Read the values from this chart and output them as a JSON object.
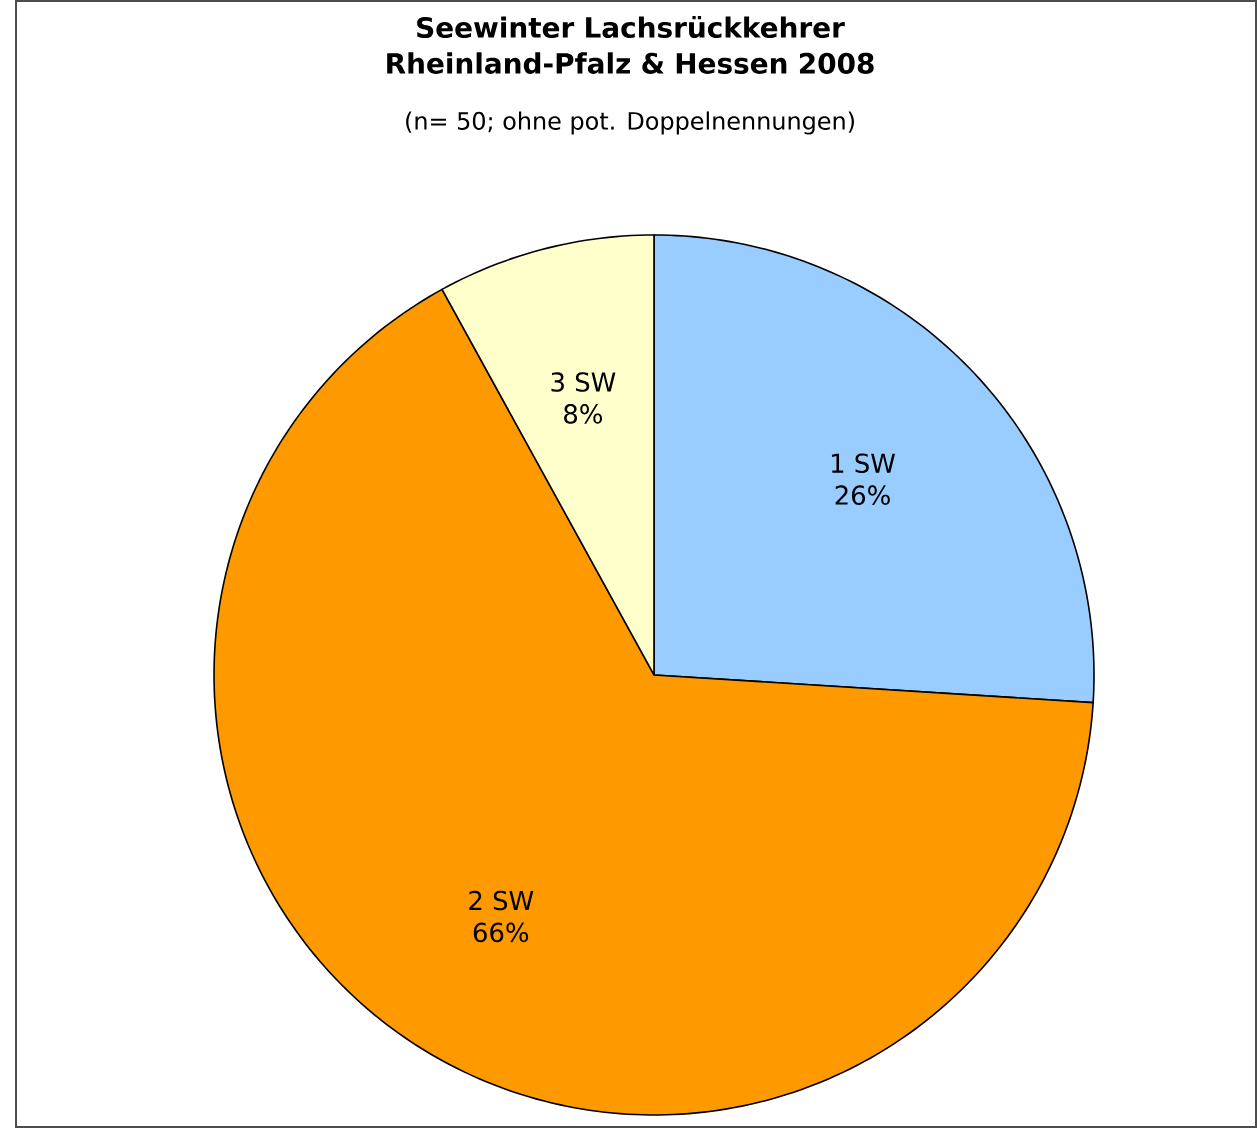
{
  "chart_data": {
    "type": "pie",
    "title": "Seewinter Lachsrückkehrer Rheinland-Pfalz & Hessen 2008",
    "subtitle": "(n= 50; ohne pot. Doppelnennungen)",
    "categories": [
      "1 SW",
      "2 SW",
      "3 SW"
    ],
    "values": [
      26,
      66,
      8
    ],
    "value_labels": [
      "26%",
      "66%",
      "8%"
    ],
    "colors": [
      "#99ccff",
      "#ff9900",
      "#ffffcc"
    ]
  }
}
